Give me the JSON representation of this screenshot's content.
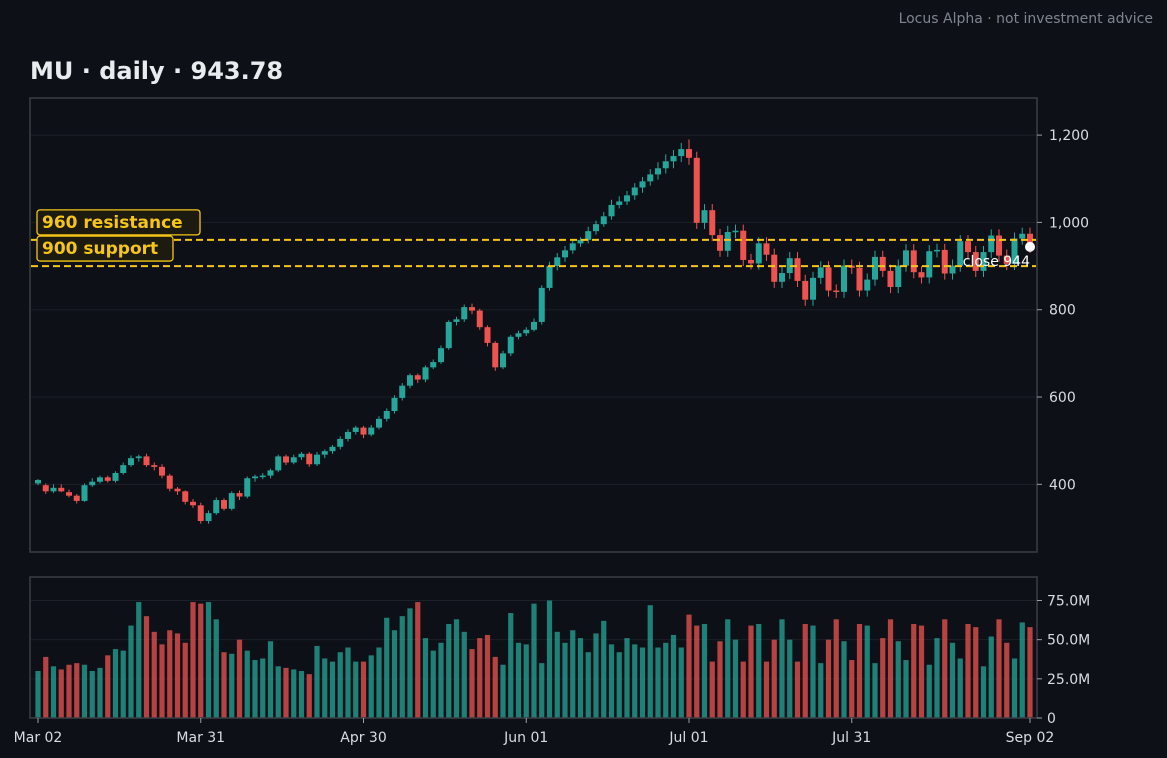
{
  "watermark": "Locus Alpha · not investment advice",
  "title": "MU  ·  daily  ·  943.78",
  "colors": {
    "background": "#0d1117",
    "up": "#26a69a",
    "down": "#ef5350",
    "level": "#f5c518",
    "grid": "#1b2029",
    "frame": "#3a3f47"
  },
  "chart_data": {
    "type": "candlestick",
    "ticker": "MU",
    "interval": "daily",
    "last_close": 943.78,
    "price_axis": {
      "ticks": [
        400,
        600,
        800,
        1000,
        1200
      ],
      "tick_labels": [
        "400",
        "600",
        "800",
        "1,000",
        "1,200"
      ],
      "ylim": [
        245,
        1285
      ]
    },
    "volume_axis": {
      "ticks": [
        0,
        25000000,
        50000000,
        75000000
      ],
      "tick_labels": [
        "0",
        "25.0M",
        "50.0M",
        "75.0M"
      ],
      "ylim": [
        0,
        90000000
      ]
    },
    "x_ticks": [
      {
        "label": "Mar 02",
        "index": 0
      },
      {
        "label": "Mar 31",
        "index": 21
      },
      {
        "label": "Apr 30",
        "index": 42
      },
      {
        "label": "Jun 01",
        "index": 63
      },
      {
        "label": "Jul 01",
        "index": 84
      },
      {
        "label": "Jul 31",
        "index": 105
      },
      {
        "label": "Sep 02",
        "index": 128
      }
    ],
    "levels": [
      {
        "label": "960  resistance",
        "price": 960
      },
      {
        "label": "900  support",
        "price": 900
      }
    ],
    "close_label": "close 944",
    "close_price": 944,
    "candles": [
      [
        402,
        410,
        398,
        412,
        30
      ],
      [
        398,
        384,
        378,
        402,
        39
      ],
      [
        384,
        392,
        380,
        400,
        33
      ],
      [
        392,
        384,
        382,
        400,
        31
      ],
      [
        382,
        374,
        370,
        388,
        34
      ],
      [
        374,
        362,
        356,
        378,
        35
      ],
      [
        362,
        398,
        360,
        402,
        34
      ],
      [
        398,
        406,
        394,
        414,
        30
      ],
      [
        406,
        416,
        402,
        420,
        32
      ],
      [
        416,
        408,
        404,
        420,
        40
      ],
      [
        408,
        426,
        404,
        430,
        44
      ],
      [
        426,
        444,
        422,
        450,
        43
      ],
      [
        444,
        460,
        440,
        466,
        59
      ],
      [
        460,
        464,
        452,
        468,
        74
      ],
      [
        464,
        444,
        440,
        470,
        65
      ],
      [
        444,
        440,
        432,
        450,
        55
      ],
      [
        440,
        420,
        414,
        446,
        47
      ],
      [
        420,
        390,
        384,
        424,
        56
      ],
      [
        390,
        384,
        376,
        394,
        54
      ],
      [
        384,
        360,
        354,
        386,
        48
      ],
      [
        360,
        352,
        346,
        366,
        74
      ],
      [
        352,
        316,
        310,
        358,
        73
      ],
      [
        316,
        334,
        310,
        340,
        74
      ],
      [
        334,
        364,
        330,
        370,
        63
      ],
      [
        364,
        344,
        340,
        368,
        42
      ],
      [
        344,
        380,
        340,
        384,
        41
      ],
      [
        380,
        372,
        364,
        386,
        50
      ],
      [
        372,
        414,
        368,
        418,
        43
      ],
      [
        414,
        418,
        406,
        422,
        37
      ],
      [
        418,
        420,
        412,
        426,
        38
      ],
      [
        420,
        432,
        414,
        436,
        49
      ],
      [
        432,
        464,
        428,
        468,
        33
      ],
      [
        464,
        450,
        444,
        468,
        32
      ],
      [
        450,
        462,
        446,
        468,
        31
      ],
      [
        462,
        470,
        456,
        474,
        30
      ],
      [
        470,
        446,
        440,
        474,
        28
      ],
      [
        446,
        468,
        442,
        474,
        46
      ],
      [
        468,
        476,
        460,
        480,
        38
      ],
      [
        476,
        486,
        470,
        490,
        36
      ],
      [
        486,
        504,
        480,
        510,
        42
      ],
      [
        504,
        520,
        498,
        526,
        45
      ],
      [
        520,
        530,
        514,
        534,
        36
      ],
      [
        530,
        514,
        506,
        534,
        36
      ],
      [
        514,
        530,
        510,
        536,
        40
      ],
      [
        530,
        550,
        526,
        556,
        45
      ],
      [
        550,
        568,
        544,
        574,
        64
      ],
      [
        568,
        598,
        562,
        604,
        56
      ],
      [
        598,
        626,
        592,
        632,
        65
      ],
      [
        626,
        650,
        620,
        654,
        70
      ],
      [
        650,
        640,
        632,
        654,
        74
      ],
      [
        640,
        668,
        634,
        672,
        51
      ],
      [
        668,
        680,
        664,
        686,
        43
      ],
      [
        680,
        712,
        676,
        718,
        48
      ],
      [
        712,
        772,
        708,
        776,
        60
      ],
      [
        772,
        778,
        764,
        784,
        63
      ],
      [
        778,
        806,
        772,
        812,
        55
      ],
      [
        806,
        798,
        790,
        814,
        44
      ],
      [
        798,
        760,
        754,
        802,
        51
      ],
      [
        760,
        724,
        716,
        764,
        53
      ],
      [
        724,
        668,
        660,
        728,
        39
      ],
      [
        668,
        700,
        664,
        706,
        34
      ],
      [
        700,
        738,
        694,
        742,
        67
      ],
      [
        738,
        746,
        732,
        752,
        48
      ],
      [
        746,
        754,
        740,
        760,
        47
      ],
      [
        754,
        772,
        750,
        780,
        73
      ],
      [
        772,
        850,
        766,
        856,
        35
      ],
      [
        850,
        900,
        844,
        910,
        75
      ],
      [
        900,
        920,
        890,
        930,
        55
      ],
      [
        920,
        936,
        910,
        946,
        48
      ],
      [
        936,
        952,
        928,
        960,
        56
      ],
      [
        952,
        960,
        944,
        966,
        51
      ],
      [
        960,
        980,
        952,
        990,
        42
      ],
      [
        980,
        996,
        972,
        1004,
        54
      ],
      [
        996,
        1014,
        990,
        1024,
        62
      ],
      [
        1014,
        1040,
        1006,
        1052,
        47
      ],
      [
        1040,
        1048,
        1032,
        1060,
        42
      ],
      [
        1048,
        1062,
        1040,
        1072,
        51
      ],
      [
        1062,
        1080,
        1052,
        1090,
        47
      ],
      [
        1080,
        1094,
        1068,
        1104,
        45
      ],
      [
        1094,
        1110,
        1084,
        1122,
        72
      ],
      [
        1110,
        1124,
        1098,
        1138,
        45
      ],
      [
        1124,
        1140,
        1112,
        1156,
        48
      ],
      [
        1140,
        1152,
        1124,
        1166,
        53
      ],
      [
        1152,
        1168,
        1138,
        1182,
        45
      ],
      [
        1168,
        1148,
        1132,
        1190,
        66
      ]
    ]
  }
}
